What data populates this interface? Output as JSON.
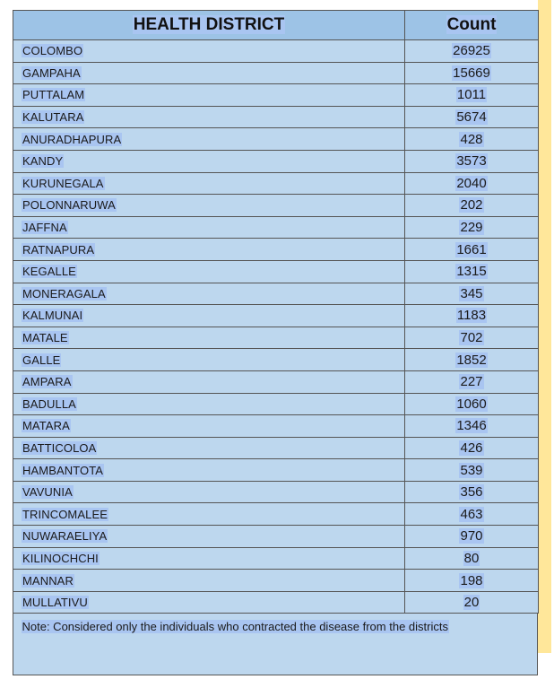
{
  "header": {
    "district_label": "HEALTH DISTRICT",
    "count_label": "Count"
  },
  "rows": [
    {
      "district": "COLOMBO",
      "count": "26925"
    },
    {
      "district": "GAMPAHA",
      "count": "15669"
    },
    {
      "district": "PUTTALAM",
      "count": "1011"
    },
    {
      "district": "KALUTARA",
      "count": "5674"
    },
    {
      "district": "ANURADHAPURA",
      "count": "428"
    },
    {
      "district": "KANDY",
      "count": "3573"
    },
    {
      "district": "KURUNEGALA",
      "count": "2040"
    },
    {
      "district": "POLONNARUWA",
      "count": "202"
    },
    {
      "district": "JAFFNA",
      "count": "229"
    },
    {
      "district": "RATNAPURA",
      "count": "1661"
    },
    {
      "district": "KEGALLE",
      "count": "1315"
    },
    {
      "district": "MONERAGALA",
      "count": "345"
    },
    {
      "district": "KALMUNAI",
      "count": "1183"
    },
    {
      "district": "MATALE",
      "count": "702"
    },
    {
      "district": "GALLE",
      "count": "1852"
    },
    {
      "district": "AMPARA",
      "count": "227"
    },
    {
      "district": "BADULLA",
      "count": "1060"
    },
    {
      "district": "MATARA",
      "count": "1346"
    },
    {
      "district": "BATTICOLOA",
      "count": "426"
    },
    {
      "district": "HAMBANTOTA",
      "count": "539"
    },
    {
      "district": "VAVUNIA",
      "count": "356"
    },
    {
      "district": "TRINCOMALEE",
      "count": "463"
    },
    {
      "district": "NUWARAELIYA",
      "count": "970"
    },
    {
      "district": "KILINOCHCHI",
      "count": "80"
    },
    {
      "district": "MANNAR",
      "count": "198"
    },
    {
      "district": "MULLATIVU",
      "count": "20"
    }
  ],
  "note": "Note:  Considered only the individuals who contracted the disease from the districts",
  "colors": {
    "header_bg": "#9dc3e6",
    "cell_bg": "#bdd7ee",
    "text_highlight": "#a9c5f1",
    "accent_strip": "#ffe79a"
  }
}
